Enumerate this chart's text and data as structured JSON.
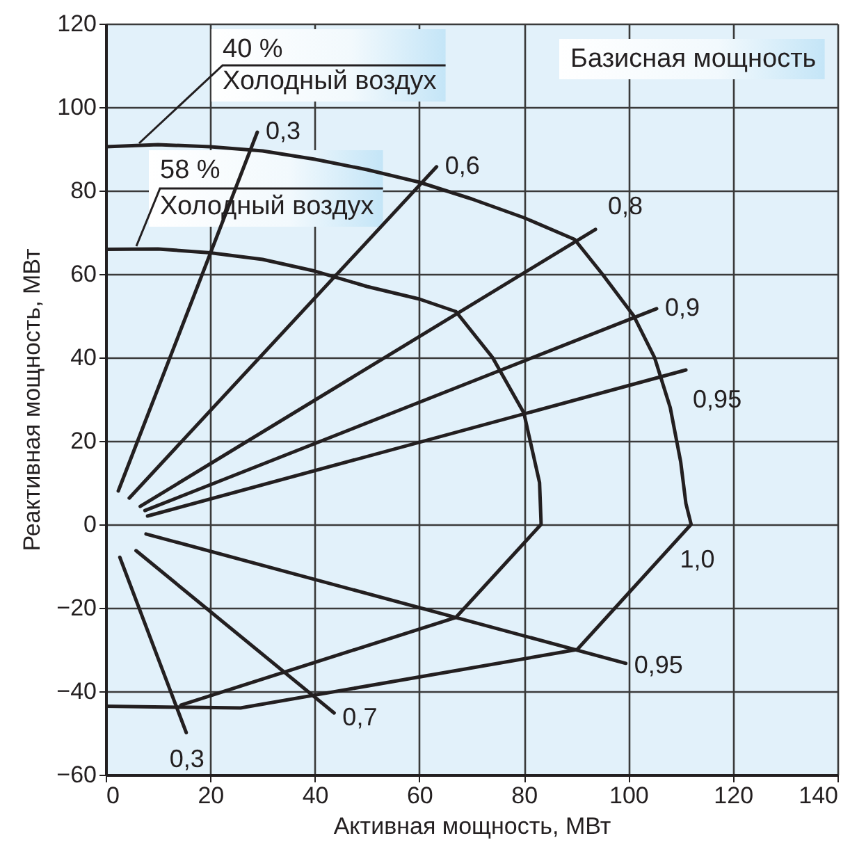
{
  "chart_data": {
    "type": "line",
    "xlabel": "Активная мощность, МВт",
    "ylabel": "Реактивная мощность, МВт",
    "xlim": [
      0,
      140
    ],
    "xticks": [
      0,
      20,
      40,
      60,
      80,
      100,
      120,
      140
    ],
    "ylim": [
      -60,
      120
    ],
    "yticks": [
      -60,
      -40,
      -20,
      0,
      20,
      40,
      60,
      80,
      100,
      120
    ],
    "grid": true,
    "line_style": "solid",
    "series": [
      {
        "color": "#231f20",
        "x": [
          0,
          10,
          20,
          30,
          40,
          50,
          60,
          70,
          80,
          89.7,
          95,
          101,
          105,
          108,
          110,
          111,
          112,
          90.2,
          25.8,
          0
        ],
        "values": [
          90.5,
          91,
          90.5,
          89.5,
          87.5,
          85,
          82,
          78,
          73.5,
          68.3,
          60,
          50,
          40,
          28,
          15,
          5,
          0,
          -30,
          -44,
          -43.6
        ]
      },
      {
        "color": "#231f20",
        "x": [
          0,
          10,
          20,
          30,
          40,
          50,
          60,
          67,
          74,
          80,
          83,
          83.3,
          67,
          14.4
        ],
        "values": [
          65.9,
          66,
          65.1,
          63.5,
          60.7,
          57,
          54,
          51,
          40,
          26.7,
          10,
          0,
          -22.3,
          -43.3
        ]
      },
      {
        "color": "#231f20",
        "x": [
          2.4,
          29
        ],
        "values": [
          8,
          94
        ]
      },
      {
        "color": "#231f20",
        "x": [
          4.5,
          63.3
        ],
        "values": [
          6.3,
          85.7
        ]
      },
      {
        "color": "#231f20",
        "x": [
          6.6,
          93.7
        ],
        "values": [
          4.3,
          70.7
        ]
      },
      {
        "color": "#231f20",
        "x": [
          7.5,
          105.4
        ],
        "values": [
          3.3,
          51.7
        ]
      },
      {
        "color": "#231f20",
        "x": [
          8,
          111
        ],
        "values": [
          2,
          37
        ]
      },
      {
        "color": "#231f20",
        "x": [
          7.7,
          99.5
        ],
        "values": [
          -2.3,
          -33.3
        ]
      },
      {
        "color": "#231f20",
        "x": [
          5.8,
          43.7
        ],
        "values": [
          -6.3,
          -45.2
        ]
      },
      {
        "color": "#231f20",
        "x": [
          2.7,
          15.4
        ],
        "values": [
          -7.9,
          -49.9
        ]
      }
    ],
    "annotations": [
      "40 %",
      "Холодный воздух",
      "58 %",
      "Холодный воздух",
      "Базисная мощность",
      {
        "text": "0,3",
        "x": 29,
        "y": 94
      },
      {
        "text": "0,6",
        "x": 63.3,
        "y": 85.7
      },
      {
        "text": "0,8",
        "x": 93.7,
        "y": 70.7
      },
      {
        "text": "0,9",
        "x": 105.4,
        "y": 51.7
      },
      {
        "text": "0,95",
        "x": 111,
        "y": 37
      },
      {
        "text": "1,0",
        "x": 112,
        "y": 0
      },
      {
        "text": "0,95",
        "x": 99.5,
        "y": -33.3
      },
      {
        "text": "0,7",
        "x": 43.7,
        "y": -45.2
      },
      {
        "text": "0,3",
        "x": 15.4,
        "y": -49.9
      }
    ]
  }
}
